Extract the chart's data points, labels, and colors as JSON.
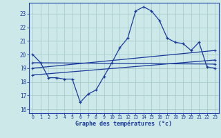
{
  "xlabel": "Graphe des températures (°c)",
  "xlim": [
    -0.5,
    23.5
  ],
  "ylim": [
    15.7,
    23.8
  ],
  "yticks": [
    16,
    17,
    18,
    19,
    20,
    21,
    22,
    23
  ],
  "xticks": [
    0,
    1,
    2,
    3,
    4,
    5,
    6,
    7,
    8,
    9,
    10,
    11,
    12,
    13,
    14,
    15,
    16,
    17,
    18,
    19,
    20,
    21,
    22,
    23
  ],
  "bg_color": "#cce8e8",
  "grid_color": "#aacccc",
  "line_color": "#1a3a9a",
  "axis_color": "#2244aa",
  "curve1_x": [
    0,
    1,
    2,
    3,
    4,
    5,
    6,
    7,
    8,
    9,
    10,
    11,
    12,
    13,
    14,
    15,
    16,
    17,
    18,
    19,
    20,
    21,
    22,
    23
  ],
  "curve1_y": [
    20.0,
    19.4,
    18.3,
    18.3,
    18.2,
    18.2,
    16.5,
    17.1,
    17.4,
    18.4,
    19.4,
    20.5,
    21.2,
    23.2,
    23.5,
    23.2,
    22.5,
    21.2,
    20.9,
    20.8,
    20.3,
    20.9,
    19.1,
    19.0
  ],
  "line2_x": [
    0,
    23
  ],
  "line2_y": [
    19.4,
    19.3
  ],
  "line3_x": [
    0,
    23
  ],
  "line3_y": [
    19.0,
    20.3
  ],
  "line4_x": [
    0,
    23
  ],
  "line4_y": [
    18.5,
    19.6
  ]
}
